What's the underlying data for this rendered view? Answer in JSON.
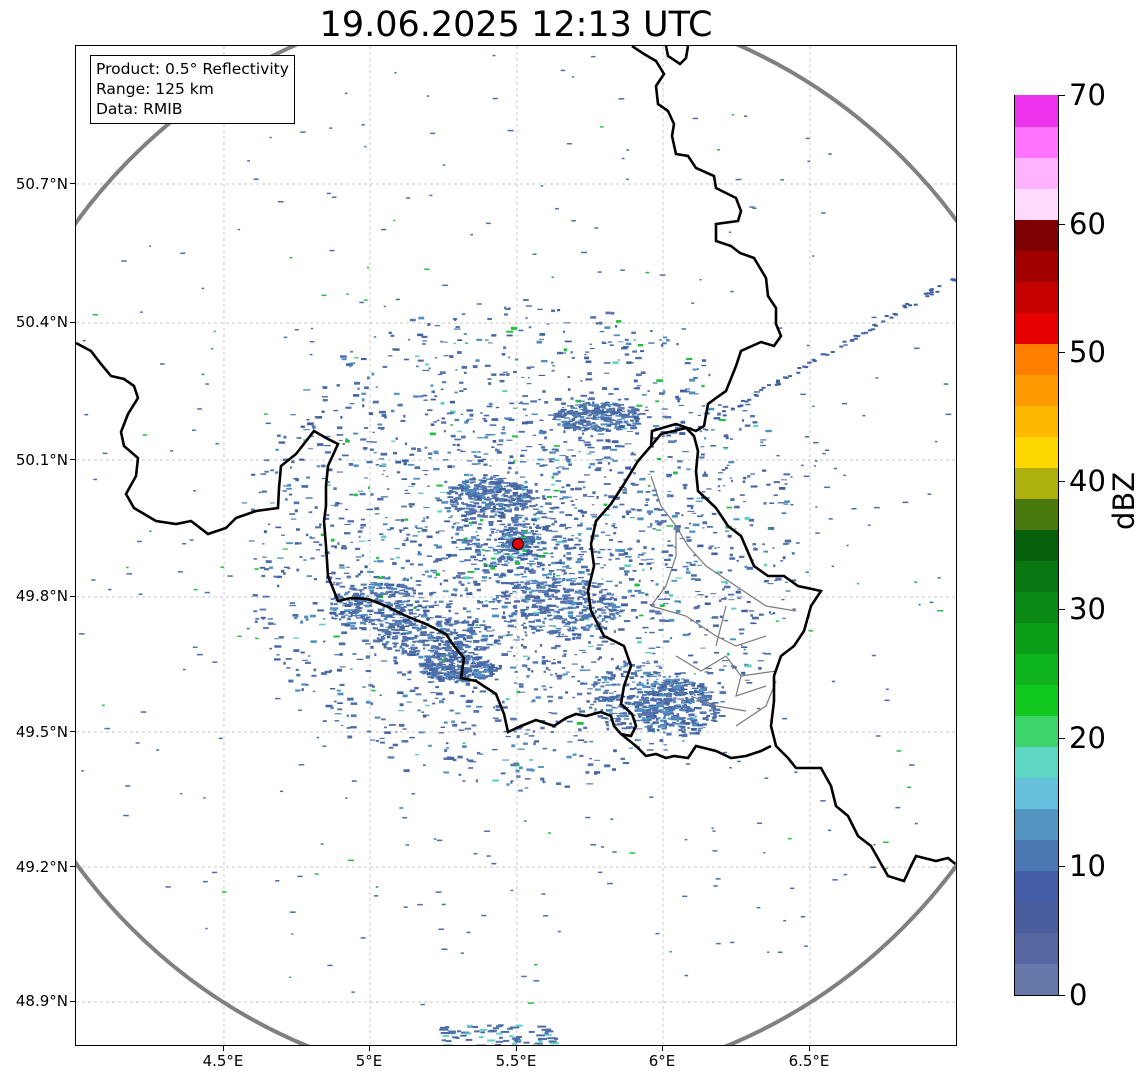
{
  "title": "19.06.2025 12:13 UTC",
  "info_box": {
    "product": "Product: 0.5° Reflectivity",
    "range": "Range: 125 km",
    "data": "Data: RMIB"
  },
  "map": {
    "lon_ticks": [
      "4.5°E",
      "5°E",
      "5.5°E",
      "6°E",
      "6.5°E"
    ],
    "lat_ticks": [
      "50.7°N",
      "50.4°N",
      "50.1°N",
      "49.8°N",
      "49.5°N",
      "49.2°N",
      "48.9°N"
    ],
    "radar_site_marker": "red-circle",
    "range_ring_color": "#808080",
    "border_color": "#000000",
    "grid": true
  },
  "colorbar": {
    "label": "dBZ",
    "ticks": [
      "0",
      "10",
      "20",
      "30",
      "40",
      "50",
      "60",
      "70"
    ],
    "colors": [
      "#6677aa",
      "#5566a0",
      "#4a5e9e",
      "#435da6",
      "#4b78b3",
      "#5396c2",
      "#64c0dc",
      "#5ed6c4",
      "#3ed46c",
      "#10c81e",
      "#0db41b",
      "#0b9e17",
      "#0a8a14",
      "#097711",
      "#06620d",
      "#4a7a0e",
      "#aeb010",
      "#ffd700",
      "#ffb800",
      "#ff9a00",
      "#ff7f00",
      "#e60000",
      "#c40000",
      "#a20000",
      "#7e0000",
      "#ffdcff",
      "#ffb3ff",
      "#ff73ff",
      "#ee33ee"
    ]
  }
}
